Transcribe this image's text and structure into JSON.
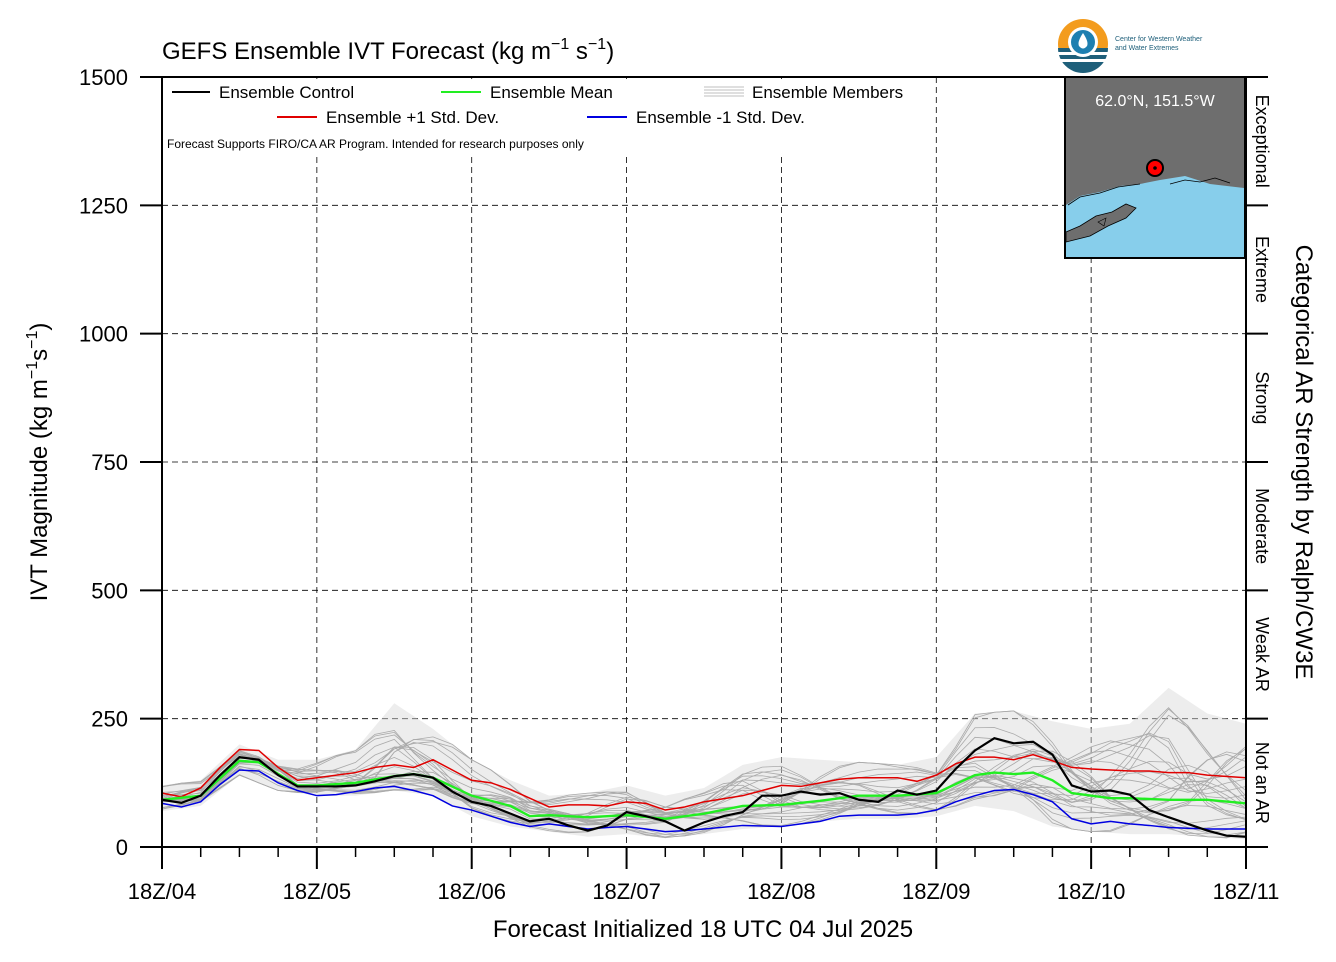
{
  "chart_data": {
    "type": "line",
    "title": "GEFS Ensemble IVT Forecast (kg m⁻¹ s⁻¹)",
    "title_main": "GEFS Ensemble IVT Forecast (kg m",
    "title_sup1": "−1",
    "title_mid": " s",
    "title_sup2": "−1",
    "title_end": ")",
    "xlabel": "Forecast Initialized 18 UTC 04 Jul 2025",
    "ylabel": "IVT Magnitude (kg m⁻¹s⁻¹)",
    "ylabel_main": "IVT Magnitude (kg m",
    "ylabel_sup1": "−1",
    "ylabel_mid": "s",
    "ylabel_sup2": "−1",
    "ylabel_end": ")",
    "right_axis_label": "Categorical AR Strength by Ralph/CW3E",
    "ylim": [
      0,
      1500
    ],
    "xlim_hours": [
      0,
      168
    ],
    "yticks": [
      "0",
      "250",
      "500",
      "750",
      "1000",
      "1250",
      "1500"
    ],
    "xticks": [
      "18Z/04",
      "18Z/05",
      "18Z/06",
      "18Z/07",
      "18Z/08",
      "18Z/09",
      "18Z/10",
      "18Z/11"
    ],
    "grid": "dashed",
    "note": "Forecast Supports FIRO/CA AR Program. Intended for research purposes only",
    "categories": [
      {
        "name": "Not an AR",
        "from": 0,
        "to": 250
      },
      {
        "name": "Weak AR",
        "from": 250,
        "to": 500
      },
      {
        "name": "Moderate",
        "from": 500,
        "to": 750
      },
      {
        "name": "Strong",
        "from": 750,
        "to": 1000
      },
      {
        "name": "Extreme",
        "from": 1000,
        "to": 1250
      },
      {
        "name": "Exceptional",
        "from": 1250,
        "to": 1500
      }
    ],
    "legend": [
      {
        "name": "Ensemble Control",
        "color": "#000000"
      },
      {
        "name": "Ensemble Mean",
        "color": "#22ee22"
      },
      {
        "name": "Ensemble Members",
        "color": "#aaaaaa"
      },
      {
        "name": "Ensemble +1 Std. Dev.",
        "color": "#e00000"
      },
      {
        "name": "Ensemble -1 Std. Dev.",
        "color": "#0000e0"
      }
    ],
    "location_label": "62.0°N, 151.5°W",
    "logo_text_1": "Center for Western Weather",
    "logo_text_2": "and Water Extremes",
    "x_hours": [
      0,
      6,
      12,
      18,
      24,
      30,
      36,
      42,
      48,
      54,
      60,
      66,
      72,
      78,
      84,
      90,
      96,
      102,
      108,
      114,
      120,
      126,
      132,
      138,
      144,
      150,
      156,
      162,
      168
    ],
    "series": [
      {
        "name": "Ensemble Control",
        "color": "#000000",
        "points": [
          [
            0,
            92
          ],
          [
            3,
            86
          ],
          [
            6,
            100
          ],
          [
            9,
            140
          ],
          [
            12,
            175
          ],
          [
            15,
            170
          ],
          [
            18,
            140
          ],
          [
            21,
            118
          ],
          [
            24,
            118
          ],
          [
            27,
            118
          ],
          [
            30,
            120
          ],
          [
            33,
            128
          ],
          [
            36,
            138
          ],
          [
            39,
            142
          ],
          [
            42,
            135
          ],
          [
            45,
            108
          ],
          [
            48,
            88
          ],
          [
            51,
            80
          ],
          [
            54,
            65
          ],
          [
            57,
            50
          ],
          [
            60,
            55
          ],
          [
            63,
            42
          ],
          [
            66,
            32
          ],
          [
            69,
            42
          ],
          [
            72,
            68
          ],
          [
            75,
            60
          ],
          [
            78,
            50
          ],
          [
            81,
            32
          ],
          [
            84,
            48
          ],
          [
            87,
            60
          ],
          [
            90,
            68
          ],
          [
            93,
            100
          ],
          [
            96,
            100
          ],
          [
            99,
            108
          ],
          [
            102,
            102
          ],
          [
            105,
            105
          ],
          [
            108,
            92
          ],
          [
            111,
            88
          ],
          [
            114,
            110
          ],
          [
            117,
            102
          ],
          [
            120,
            110
          ],
          [
            123,
            152
          ],
          [
            126,
            188
          ],
          [
            129,
            212
          ],
          [
            132,
            202
          ],
          [
            135,
            205
          ],
          [
            138,
            180
          ],
          [
            141,
            120
          ],
          [
            144,
            108
          ],
          [
            147,
            110
          ],
          [
            150,
            102
          ],
          [
            153,
            72
          ],
          [
            156,
            58
          ],
          [
            159,
            45
          ],
          [
            162,
            32
          ],
          [
            165,
            22
          ],
          [
            168,
            20
          ]
        ]
      },
      {
        "name": "Ensemble Mean",
        "color": "#22ee22",
        "points": [
          [
            0,
            92
          ],
          [
            6,
            100
          ],
          [
            12,
            168
          ],
          [
            15,
            165
          ],
          [
            21,
            120
          ],
          [
            24,
            120
          ],
          [
            30,
            125
          ],
          [
            36,
            138
          ],
          [
            39,
            142
          ],
          [
            42,
            135
          ],
          [
            48,
            100
          ],
          [
            54,
            80
          ],
          [
            57,
            60
          ],
          [
            60,
            62
          ],
          [
            66,
            58
          ],
          [
            72,
            62
          ],
          [
            78,
            55
          ],
          [
            84,
            65
          ],
          [
            90,
            80
          ],
          [
            96,
            82
          ],
          [
            102,
            90
          ],
          [
            108,
            100
          ],
          [
            114,
            100
          ],
          [
            120,
            105
          ],
          [
            126,
            140
          ],
          [
            129,
            145
          ],
          [
            132,
            142
          ],
          [
            135,
            145
          ],
          [
            138,
            130
          ],
          [
            141,
            105
          ],
          [
            147,
            95
          ],
          [
            150,
            95
          ],
          [
            156,
            92
          ],
          [
            162,
            92
          ],
          [
            168,
            85
          ]
        ]
      },
      {
        "name": "Ensemble +1 Std. Dev.",
        "color": "#e00000",
        "points": [
          [
            0,
            105
          ],
          [
            3,
            98
          ],
          [
            6,
            115
          ],
          [
            9,
            155
          ],
          [
            12,
            190
          ],
          [
            15,
            188
          ],
          [
            18,
            155
          ],
          [
            21,
            130
          ],
          [
            24,
            135
          ],
          [
            30,
            145
          ],
          [
            33,
            155
          ],
          [
            36,
            160
          ],
          [
            39,
            155
          ],
          [
            42,
            170
          ],
          [
            45,
            150
          ],
          [
            48,
            130
          ],
          [
            51,
            125
          ],
          [
            54,
            112
          ],
          [
            57,
            95
          ],
          [
            60,
            78
          ],
          [
            63,
            82
          ],
          [
            66,
            82
          ],
          [
            69,
            80
          ],
          [
            72,
            88
          ],
          [
            75,
            85
          ],
          [
            78,
            72
          ],
          [
            81,
            78
          ],
          [
            84,
            88
          ],
          [
            90,
            100
          ],
          [
            96,
            120
          ],
          [
            99,
            118
          ],
          [
            102,
            125
          ],
          [
            105,
            132
          ],
          [
            108,
            135
          ],
          [
            114,
            135
          ],
          [
            117,
            128
          ],
          [
            120,
            140
          ],
          [
            123,
            162
          ],
          [
            126,
            175
          ],
          [
            129,
            175
          ],
          [
            132,
            170
          ],
          [
            135,
            180
          ],
          [
            138,
            168
          ],
          [
            141,
            155
          ],
          [
            144,
            152
          ],
          [
            150,
            148
          ],
          [
            153,
            148
          ],
          [
            156,
            145
          ],
          [
            159,
            145
          ],
          [
            162,
            140
          ],
          [
            168,
            135
          ]
        ]
      },
      {
        "name": "Ensemble -1 Std. Dev.",
        "color": "#0000e0",
        "points": [
          [
            0,
            85
          ],
          [
            3,
            78
          ],
          [
            6,
            88
          ],
          [
            9,
            122
          ],
          [
            12,
            150
          ],
          [
            15,
            148
          ],
          [
            18,
            125
          ],
          [
            21,
            110
          ],
          [
            24,
            100
          ],
          [
            27,
            102
          ],
          [
            30,
            108
          ],
          [
            33,
            115
          ],
          [
            36,
            118
          ],
          [
            39,
            110
          ],
          [
            42,
            100
          ],
          [
            45,
            80
          ],
          [
            48,
            72
          ],
          [
            51,
            60
          ],
          [
            54,
            48
          ],
          [
            57,
            40
          ],
          [
            60,
            45
          ],
          [
            63,
            40
          ],
          [
            66,
            35
          ],
          [
            69,
            38
          ],
          [
            72,
            40
          ],
          [
            75,
            35
          ],
          [
            78,
            30
          ],
          [
            81,
            32
          ],
          [
            84,
            35
          ],
          [
            90,
            42
          ],
          [
            96,
            40
          ],
          [
            99,
            45
          ],
          [
            102,
            50
          ],
          [
            105,
            60
          ],
          [
            108,
            62
          ],
          [
            114,
            62
          ],
          [
            117,
            65
          ],
          [
            120,
            72
          ],
          [
            123,
            88
          ],
          [
            126,
            100
          ],
          [
            129,
            110
          ],
          [
            132,
            112
          ],
          [
            135,
            102
          ],
          [
            138,
            88
          ],
          [
            141,
            55
          ],
          [
            144,
            45
          ],
          [
            147,
            50
          ],
          [
            150,
            45
          ],
          [
            153,
            42
          ],
          [
            156,
            38
          ],
          [
            162,
            35
          ],
          [
            168,
            35
          ]
        ]
      }
    ],
    "members_range": [
      [
        0,
        120,
        70
      ],
      [
        6,
        130,
        80
      ],
      [
        12,
        200,
        140
      ],
      [
        18,
        170,
        110
      ],
      [
        24,
        170,
        100
      ],
      [
        30,
        190,
        100
      ],
      [
        36,
        280,
        110
      ],
      [
        42,
        230,
        100
      ],
      [
        48,
        170,
        60
      ],
      [
        54,
        130,
        40
      ],
      [
        60,
        100,
        30
      ],
      [
        66,
        105,
        20
      ],
      [
        72,
        120,
        25
      ],
      [
        78,
        100,
        18
      ],
      [
        84,
        115,
        25
      ],
      [
        90,
        160,
        35
      ],
      [
        96,
        175,
        40
      ],
      [
        102,
        170,
        50
      ],
      [
        108,
        165,
        55
      ],
      [
        114,
        160,
        55
      ],
      [
        120,
        175,
        60
      ],
      [
        126,
        260,
        80
      ],
      [
        132,
        265,
        70
      ],
      [
        138,
        245,
        40
      ],
      [
        144,
        230,
        30
      ],
      [
        150,
        240,
        25
      ],
      [
        156,
        310,
        25
      ],
      [
        162,
        260,
        20
      ],
      [
        168,
        240,
        15
      ]
    ]
  }
}
